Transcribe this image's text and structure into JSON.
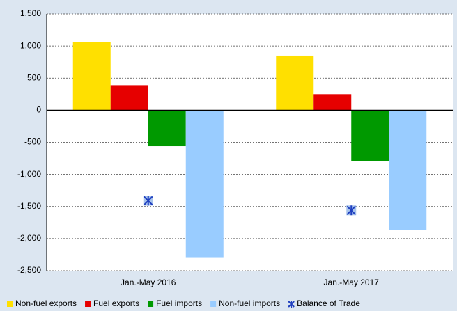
{
  "chart_data": {
    "type": "bar",
    "categories": [
      "Jan.-May 2016",
      "Jan.-May 2017"
    ],
    "series": [
      {
        "name": "Non-fuel exports",
        "color": "#ffe000",
        "values": [
          1060,
          850
        ]
      },
      {
        "name": "Fuel exports",
        "color": "#e60000",
        "values": [
          390,
          250
        ]
      },
      {
        "name": "Fuel imports",
        "color": "#009900",
        "values": [
          -560,
          -790
        ]
      },
      {
        "name": "Non-fuel imports",
        "color": "#99ccff",
        "values": [
          -2300,
          -1870
        ]
      },
      {
        "name": "Balance of Trade",
        "color": "#1f3fbf",
        "type": "scatter",
        "values": [
          -1410,
          -1560
        ]
      }
    ],
    "ylim": [
      -2500,
      1500
    ],
    "yticks": [
      {
        "value": -2500,
        "label": "-2,500"
      },
      {
        "value": -2000,
        "label": "-2,000"
      },
      {
        "value": -1500,
        "label": "-1,500"
      },
      {
        "value": -1000,
        "label": "-1,000"
      },
      -500,
      0,
      500,
      {
        "value": 1000,
        "label": "1,000"
      },
      {
        "value": 1500,
        "label": "1,500"
      }
    ],
    "grid": true,
    "legend": "bottom"
  }
}
